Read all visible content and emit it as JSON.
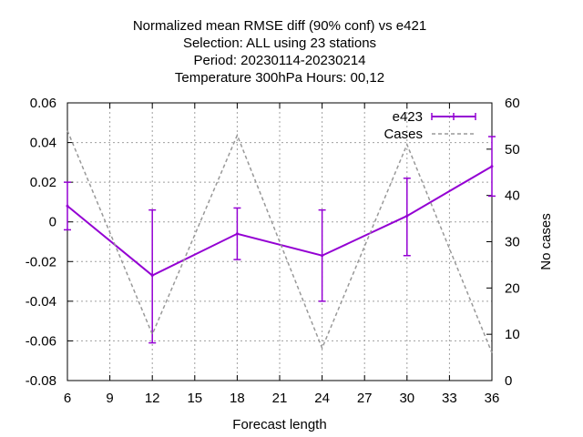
{
  "chart_data": {
    "type": "line",
    "title_lines": [
      "Normalized mean RMSE diff (90% conf) vs e421",
      "Selection: ALL using    23 stations",
      "Period: 20230114-20230214",
      "Temperature 300hPa   Hours:  00,12"
    ],
    "xlabel": "Forecast length",
    "ylabel": "",
    "y2label": "No cases",
    "xlim": [
      6,
      36
    ],
    "ylim": [
      -0.08,
      0.06
    ],
    "y2lim": [
      0,
      60
    ],
    "x_ticks": [
      6,
      9,
      12,
      15,
      18,
      21,
      24,
      27,
      30,
      33,
      36
    ],
    "y_ticks": [
      "-0.08",
      "-0.06",
      "-0.04",
      "-0.02",
      "0",
      "0.02",
      "0.04",
      "0.06"
    ],
    "y2_ticks": [
      "0",
      "10",
      "20",
      "30",
      "40",
      "50",
      "60"
    ],
    "grid": true,
    "legend_position": "top-right",
    "series": [
      {
        "name": "e423",
        "axis": "left",
        "color": "#9400d3",
        "style": "line with error bars",
        "x": [
          6,
          12,
          18,
          24,
          30,
          36
        ],
        "y": [
          0.008,
          -0.027,
          -0.006,
          -0.017,
          0.003,
          0.028
        ],
        "y_low": [
          -0.004,
          -0.061,
          -0.019,
          -0.04,
          -0.017,
          0.013
        ],
        "y_high": [
          0.02,
          0.006,
          0.007,
          0.006,
          0.022,
          0.043
        ]
      },
      {
        "name": "Cases",
        "axis": "right",
        "color": "#999999",
        "style": "dashed",
        "x": [
          6,
          12,
          18,
          24,
          30,
          36
        ],
        "y": [
          54,
          10,
          53,
          7,
          51,
          6
        ]
      }
    ]
  }
}
